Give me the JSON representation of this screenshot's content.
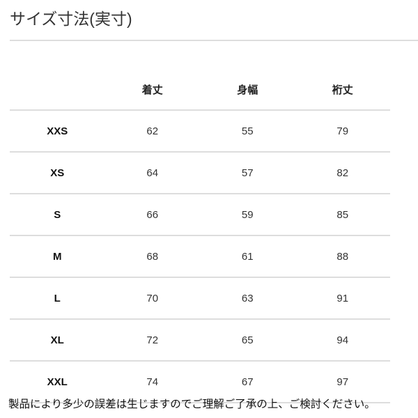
{
  "title": "サイズ寸法(実寸)",
  "table": {
    "headers": [
      "",
      "着丈",
      "身幅",
      "裄丈"
    ],
    "rows": [
      {
        "size": "XXS",
        "values": [
          "62",
          "55",
          "79"
        ]
      },
      {
        "size": "XS",
        "values": [
          "64",
          "57",
          "82"
        ]
      },
      {
        "size": "S",
        "values": [
          "66",
          "59",
          "85"
        ]
      },
      {
        "size": "M",
        "values": [
          "68",
          "61",
          "88"
        ]
      },
      {
        "size": "L",
        "values": [
          "70",
          "63",
          "91"
        ]
      },
      {
        "size": "XL",
        "values": [
          "72",
          "65",
          "94"
        ]
      },
      {
        "size": "XXL",
        "values": [
          "74",
          "67",
          "97"
        ]
      }
    ]
  },
  "note": "製品により多少の誤差は生じますのでご理解ご了承の上、ご検討ください。"
}
